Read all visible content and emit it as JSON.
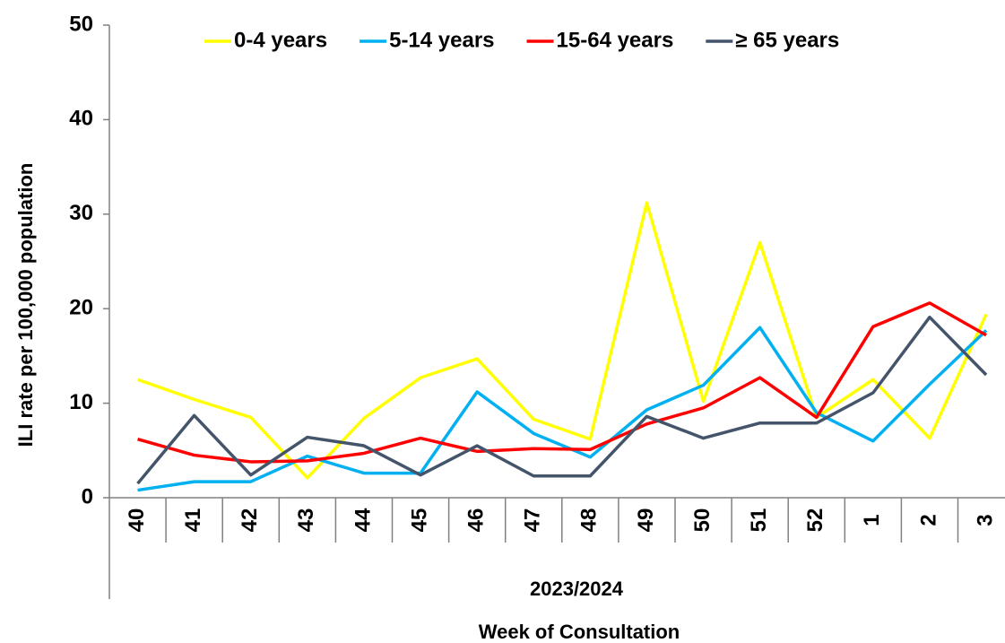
{
  "chart_data": {
    "type": "line",
    "ylabel": "ILI rate per 100,000 population",
    "xlabel": "Week of Consultation",
    "x_group_label": "2023/2024",
    "categories": [
      "40",
      "41",
      "42",
      "43",
      "44",
      "45",
      "46",
      "47",
      "48",
      "49",
      "50",
      "51",
      "52",
      "1",
      "2",
      "3"
    ],
    "ylim": [
      0,
      50
    ],
    "yticks": [
      0,
      10,
      20,
      30,
      40,
      50
    ],
    "legend": "top",
    "series": [
      {
        "name": "0-4 years",
        "color": "#ffff00",
        "values": [
          12.5,
          10.4,
          8.5,
          2.1,
          8.4,
          12.7,
          14.7,
          8.3,
          6.2,
          31.2,
          10.2,
          27.0,
          8.5,
          12.5,
          6.3,
          19.4
        ]
      },
      {
        "name": "5-14 years",
        "color": "#00b0f0",
        "values": [
          0.8,
          1.7,
          1.7,
          4.4,
          2.6,
          2.6,
          11.2,
          6.8,
          4.3,
          9.3,
          11.9,
          18.0,
          9.0,
          6.0,
          12.0,
          17.7
        ]
      },
      {
        "name": "15-64 years",
        "color": "#ff0000",
        "values": [
          6.2,
          4.5,
          3.8,
          3.9,
          4.7,
          6.3,
          4.9,
          5.2,
          5.1,
          7.8,
          9.5,
          12.7,
          8.5,
          18.1,
          20.6,
          17.2
        ]
      },
      {
        "name": "≥ 65 years",
        "color": "#44546a",
        "values": [
          1.5,
          8.7,
          2.4,
          6.4,
          5.5,
          2.4,
          5.5,
          2.3,
          2.3,
          8.6,
          6.3,
          7.9,
          7.9,
          11.1,
          19.1,
          13.0
        ]
      }
    ]
  }
}
